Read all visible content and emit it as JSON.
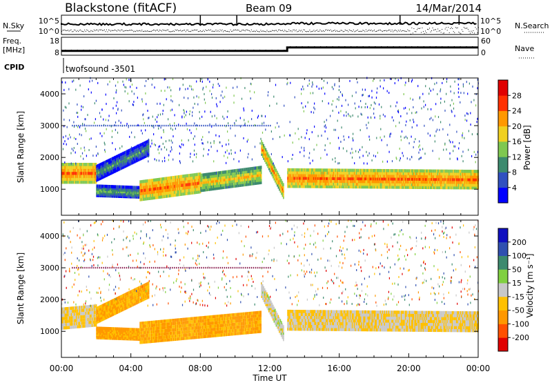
{
  "header": {
    "radar": "Blackstone (fitACF)",
    "beam": "Beam 09",
    "date": "14/Mar/2014"
  },
  "summary": {
    "nsky_label": "N.Sky",
    "nsky_ticks": [
      "10^5",
      "10^0"
    ],
    "nsearch_label": "N.Search",
    "freq_label": "Freq.",
    "freq_unit": "[MHz]",
    "freq_ticks": [
      "18",
      "8"
    ],
    "nave_label": "Nave",
    "nave_ticks": [
      "60",
      "0"
    ],
    "cpid_label": "CPID",
    "cpid_value": "twofsound -3501"
  },
  "x_axis": {
    "label": "Time UT",
    "ticks": [
      "00:00",
      "04:00",
      "08:00",
      "12:00",
      "16:00",
      "20:00",
      "00:00"
    ]
  },
  "power_panel": {
    "ylabel": "Slant Range [km]",
    "yticks": [
      "4000",
      "3000",
      "2000",
      "1000"
    ],
    "colorbar_label": "Power [dB]",
    "colorbar_ticks": [
      "28",
      "24",
      "20",
      "16",
      "12",
      "8",
      "4"
    ]
  },
  "velocity_panel": {
    "ylabel": "Slant Range [km]",
    "yticks": [
      "4000",
      "3000",
      "2000",
      "1000"
    ],
    "colorbar_label": "Velocity [m s⁻¹]",
    "colorbar_ticks": [
      "200",
      "100",
      "50",
      "15",
      "-15",
      "-50",
      "-100",
      "-200"
    ]
  },
  "chart_data": [
    {
      "type": "line",
      "panel": "frequency",
      "ylabel": "Freq. [MHz]",
      "x": [
        0,
        13.0,
        13.0,
        24
      ],
      "values": [
        10.4,
        10.4,
        12.3,
        12.3
      ],
      "ylim": [
        8,
        18
      ],
      "xlim": [
        0,
        24
      ]
    },
    {
      "type": "heatmap",
      "panel": "power",
      "ylabel": "Slant Range [km]",
      "colorbar_label": "Power [dB]",
      "xlim": [
        0,
        24
      ],
      "ylim": [
        180,
        4500
      ],
      "zlim": [
        0,
        30
      ],
      "colorscale": [
        "#0000ff",
        "#3050c0",
        "#3c8a6e",
        "#7fc850",
        "#f0d020",
        "#ff9800",
        "#ff3000",
        "#e00000"
      ],
      "features": [
        {
          "t0": 0.0,
          "t1": 2.0,
          "r0": 1500,
          "r1": 1500,
          "width": 280,
          "level": 26
        },
        {
          "t0": 2.0,
          "t1": 5.0,
          "r0": 1500,
          "r1": 2300,
          "width": 220,
          "level": 12
        },
        {
          "t0": 2.0,
          "t1": 4.5,
          "r0": 950,
          "r1": 900,
          "width": 150,
          "level": 14
        },
        {
          "t0": 4.5,
          "t1": 8.0,
          "r0": 950,
          "r1": 1200,
          "width": 280,
          "level": 26
        },
        {
          "t0": 8.0,
          "t1": 11.5,
          "r0": 1200,
          "r1": 1450,
          "width": 240,
          "level": 21
        },
        {
          "t0": 11.5,
          "t1": 12.8,
          "r0": 2300,
          "r1": 900,
          "width": 200,
          "level": 24
        },
        {
          "t0": 13.0,
          "t1": 24.0,
          "r0": 1350,
          "r1": 1300,
          "width": 260,
          "level": 26
        }
      ]
    },
    {
      "type": "heatmap",
      "panel": "velocity",
      "ylabel": "Slant Range [km]",
      "colorbar_label": "Velocity [m s⁻¹]",
      "xlim": [
        0,
        24
      ],
      "ylim": [
        180,
        4500
      ],
      "zlim": [
        -250,
        250
      ],
      "colorscale": [
        "#e00000",
        "#ff5000",
        "#ff9800",
        "#ffc000",
        "#c8c8c8",
        "#80d040",
        "#3c8a6e",
        "#3050b0",
        "#1010c0"
      ],
      "features": [
        {
          "t0": 0.0,
          "t1": 2.0,
          "r0": 1400,
          "r1": 1500,
          "width": 300,
          "level": 0
        },
        {
          "t0": 2.0,
          "t1": 5.0,
          "r0": 1500,
          "r1": 2300,
          "width": 220,
          "level": -60
        },
        {
          "t0": 2.0,
          "t1": 4.5,
          "r0": 950,
          "r1": 900,
          "width": 150,
          "level": -80
        },
        {
          "t0": 4.5,
          "t1": 11.5,
          "r0": 950,
          "r1": 1300,
          "width": 300,
          "level": -70
        },
        {
          "t0": 11.5,
          "t1": 12.8,
          "r0": 2300,
          "r1": 900,
          "width": 200,
          "level": 30
        },
        {
          "t0": 13.0,
          "t1": 24.0,
          "r0": 1350,
          "r1": 1300,
          "width": 280,
          "level": 0
        }
      ]
    }
  ]
}
